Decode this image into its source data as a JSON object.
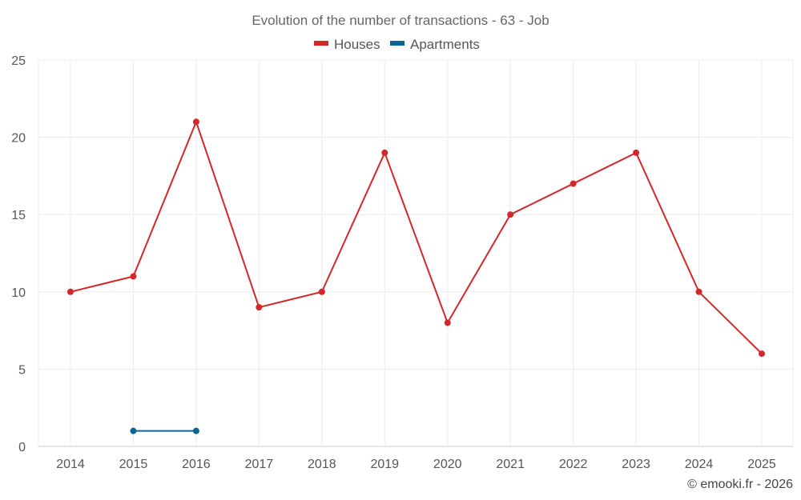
{
  "chart_data": {
    "type": "line",
    "title": "Evolution of the number of transactions - 63 - Job",
    "categories": [
      "2014",
      "2015",
      "2016",
      "2017",
      "2018",
      "2019",
      "2020",
      "2021",
      "2022",
      "2023",
      "2024",
      "2025"
    ],
    "ylim": [
      0,
      25
    ],
    "yticks": [
      0,
      5,
      10,
      15,
      20,
      25
    ],
    "grid": true,
    "legend_position": "top-center",
    "series": [
      {
        "name": "Houses",
        "color": "#d62728",
        "values": [
          10,
          11,
          21,
          9,
          10,
          19,
          8,
          15,
          17,
          19,
          10,
          6
        ]
      },
      {
        "name": "Apartments",
        "color": "#0b6396",
        "values": [
          null,
          1,
          1,
          null,
          null,
          null,
          null,
          null,
          null,
          null,
          null,
          null
        ]
      }
    ],
    "xlabel": "",
    "ylabel": ""
  },
  "credit": "© emooki.fr - 2026"
}
